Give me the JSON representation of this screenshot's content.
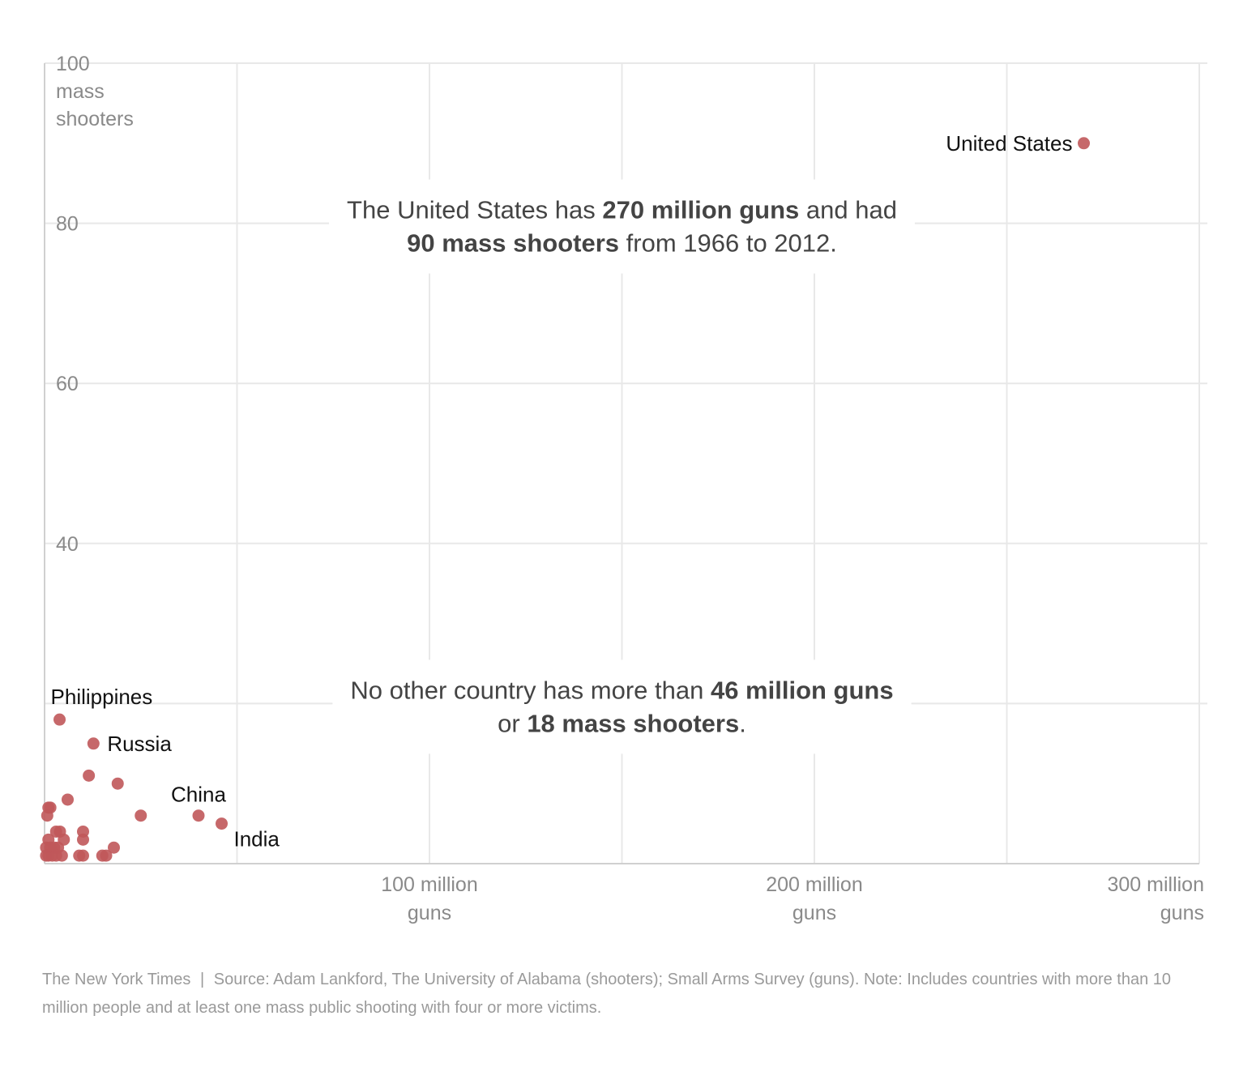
{
  "chart_data": {
    "type": "scatter",
    "title": "",
    "xlabel": "guns",
    "ylabel": "mass shooters",
    "xlim": [
      0,
      300000000
    ],
    "ylim": [
      0,
      100
    ],
    "grid": true,
    "y_ticks": [
      {
        "value": 100,
        "lines": [
          "100",
          "mass",
          "shooters"
        ]
      },
      {
        "value": 80,
        "lines": [
          "80"
        ]
      },
      {
        "value": 60,
        "lines": [
          "60"
        ]
      },
      {
        "value": 40,
        "lines": [
          "40"
        ]
      }
    ],
    "x_ticks": [
      {
        "value": 100000000,
        "lines": [
          "100 million",
          "guns"
        ]
      },
      {
        "value": 200000000,
        "lines": [
          "200 million",
          "guns"
        ]
      },
      {
        "value": 300000000,
        "lines": [
          "300 million",
          "guns"
        ]
      }
    ],
    "points": [
      {
        "name": "United States",
        "x": 270000000,
        "y": 90,
        "label_pos": "left"
      },
      {
        "name": "India",
        "x": 46000000,
        "y": 5,
        "label_pos": "below-right"
      },
      {
        "name": "China",
        "x": 40000000,
        "y": 6,
        "label_pos": "above"
      },
      {
        "name": "Philippines",
        "x": 3900000,
        "y": 18,
        "label_pos": "above-right"
      },
      {
        "name": "Russia",
        "x": 12700000,
        "y": 15,
        "label_pos": "right"
      },
      {
        "name": "",
        "x": 19000000,
        "y": 10
      },
      {
        "name": "",
        "x": 11500000,
        "y": 11
      },
      {
        "name": "",
        "x": 25000000,
        "y": 6
      },
      {
        "name": "",
        "x": 6000000,
        "y": 8
      },
      {
        "name": "",
        "x": 1000000,
        "y": 7
      },
      {
        "name": "",
        "x": 1500000,
        "y": 7
      },
      {
        "name": "",
        "x": 700000,
        "y": 6
      },
      {
        "name": "",
        "x": 10000000,
        "y": 4
      },
      {
        "name": "",
        "x": 10000000,
        "y": 3
      },
      {
        "name": "",
        "x": 3000000,
        "y": 4
      },
      {
        "name": "",
        "x": 4000000,
        "y": 4
      },
      {
        "name": "",
        "x": 5000000,
        "y": 3
      },
      {
        "name": "",
        "x": 1000000,
        "y": 3
      },
      {
        "name": "",
        "x": 18000000,
        "y": 2
      },
      {
        "name": "",
        "x": 9000000,
        "y": 1
      },
      {
        "name": "",
        "x": 10000000,
        "y": 1
      },
      {
        "name": "",
        "x": 15000000,
        "y": 1
      },
      {
        "name": "",
        "x": 16000000,
        "y": 1
      },
      {
        "name": "",
        "x": 4500000,
        "y": 1
      },
      {
        "name": "",
        "x": 400000,
        "y": 2
      },
      {
        "name": "",
        "x": 400000,
        "y": 1
      },
      {
        "name": "",
        "x": 1000000,
        "y": 1
      },
      {
        "name": "",
        "x": 1500000,
        "y": 2
      },
      {
        "name": "",
        "x": 2000000,
        "y": 1
      },
      {
        "name": "",
        "x": 2500000,
        "y": 2
      },
      {
        "name": "",
        "x": 3000000,
        "y": 1
      },
      {
        "name": "",
        "x": 3500000,
        "y": 2
      }
    ],
    "annotations": [
      {
        "x": 150000000,
        "y": 80,
        "anchor": "middle",
        "lines": [
          [
            {
              "text": "The United States has ",
              "bold": false
            },
            {
              "text": "270 million guns",
              "bold": true
            },
            {
              "text": " and had",
              "bold": false
            }
          ],
          [
            {
              "text": "90 mass shooters",
              "bold": true
            },
            {
              "text": " from 1966 to 2012.",
              "bold": false
            }
          ]
        ]
      },
      {
        "x": 150000000,
        "y": 20,
        "anchor": "middle",
        "lines": [
          [
            {
              "text": "No other country has more than ",
              "bold": false
            },
            {
              "text": "46 million guns",
              "bold": true
            }
          ],
          [
            {
              "text": "or ",
              "bold": false
            },
            {
              "text": "18 mass shooters",
              "bold": true
            },
            {
              "text": ".",
              "bold": false
            }
          ]
        ]
      }
    ]
  },
  "footer": {
    "credit": "The New York Times",
    "separator": "|",
    "source": "Source: Adam Lankford, The University of Alabama (shooters); Small Arms Survey (guns). Note: Includes countries with more than 10 million people and at least one mass public shooting with four or more victims."
  },
  "colors": {
    "dot": "#c0585a",
    "grid": "#e8e8e8",
    "tick_text": "#8a8a8a",
    "annotation_text": "#444444"
  }
}
